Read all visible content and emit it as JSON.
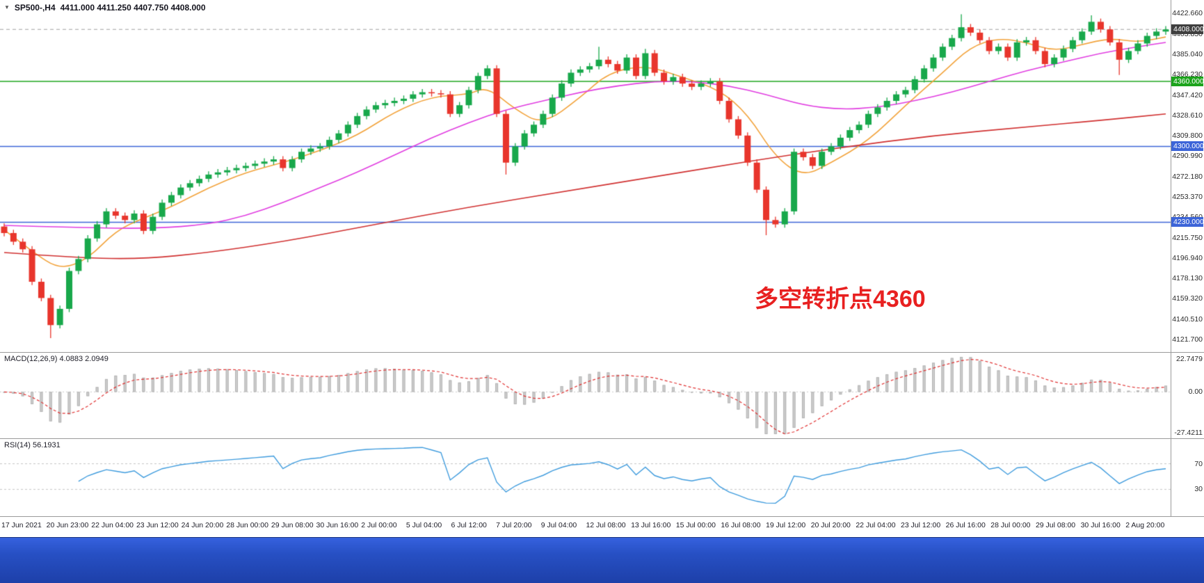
{
  "header": {
    "symbol_period": "SP500-,H4",
    "ohlc": "4411.000 4411.250 4407.750 4408.000"
  },
  "annotation": {
    "text": "多空转折点4360",
    "color": "#e82020"
  },
  "indicators": {
    "macd_label": "MACD(12,26,9) 4.0883 2.0949",
    "rsi_label": "RSI(14) 56.1931",
    "macd_axis": {
      "max": "22.7479",
      "zero": "0.00",
      "min": "-27.4211"
    },
    "rsi_axis": {
      "upper": "70",
      "lower": "30"
    }
  },
  "chart_data": [
    {
      "type": "candlestick",
      "title": "SP500-,H4",
      "x_labels": [
        "17 Jun 2021",
        "20 Jun 23:00",
        "22 Jun 04:00",
        "23 Jun 12:00",
        "24 Jun 20:00",
        "28 Jun 00:00",
        "29 Jun 08:00",
        "30 Jun 16:00",
        "2 Jul 00:00",
        "5 Jul 04:00",
        "6 Jul 12:00",
        "7 Jul 20:00",
        "9 Jul 04:00",
        "12 Jul 08:00",
        "13 Jul 16:00",
        "15 Jul 00:00",
        "16 Jul 08:00",
        "19 Jul 12:00",
        "20 Jul 20:00",
        "22 Jul 04:00",
        "23 Jul 12:00",
        "26 Jul 16:00",
        "28 Jul 00:00",
        "29 Jul 08:00",
        "30 Jul 16:00",
        "2 Aug 20:00"
      ],
      "first_open": 4226,
      "closes": [
        4220,
        4212,
        4205,
        4175,
        4160,
        4135,
        4150,
        4185,
        4196,
        4215,
        4228,
        4240,
        4236,
        4232,
        4238,
        4222,
        4235,
        4248,
        4255,
        4262,
        4266,
        4270,
        4274,
        4276,
        4278,
        4280,
        4282,
        4284,
        4286,
        4288,
        4280,
        4288,
        4295,
        4298,
        4300,
        4306,
        4312,
        4320,
        4328,
        4334,
        4338,
        4340,
        4342,
        4344,
        4348,
        4350,
        4349,
        4348,
        4330,
        4338,
        4352,
        4365,
        4372,
        4330,
        4285,
        4300,
        4312,
        4320,
        4330,
        4345,
        4358,
        4368,
        4371,
        4374,
        4380,
        4376,
        4370,
        4382,
        4365,
        4386,
        4368,
        4360,
        4364,
        4358,
        4355,
        4358,
        4360,
        4342,
        4325,
        4310,
        4285,
        4260,
        4232,
        4228,
        4240,
        4295,
        4290,
        4282,
        4295,
        4300,
        4308,
        4315,
        4320,
        4330,
        4336,
        4342,
        4348,
        4352,
        4362,
        4372,
        4382,
        4392,
        4400,
        4410,
        4405,
        4398,
        4388,
        4392,
        4382,
        4396,
        4398,
        4388,
        4376,
        4382,
        4390,
        4398,
        4406,
        4415,
        4408,
        4396,
        4380,
        4388,
        4395,
        4402,
        4406,
        4408
      ],
      "wick_extra": 3,
      "special_wicks": {
        "5": {
          "low": 4123
        },
        "54": {
          "low": 4274
        },
        "64": {
          "high": 4392
        },
        "69": {
          "high": 4390
        },
        "82": {
          "low": 4218
        },
        "103": {
          "high": 4422
        },
        "117": {
          "high": 4421
        },
        "120": {
          "low": 4366
        }
      },
      "ylim": [
        4114,
        4430
      ],
      "axis_labels": [
        "4422.660",
        "4403.850",
        "4385.040",
        "4366.230",
        "4347.420",
        "4328.610",
        "4309.800",
        "4290.990",
        "4272.180",
        "4253.370",
        "4234.560",
        "4215.750",
        "4196.940",
        "4178.130",
        "4159.320",
        "4140.510",
        "4121.700"
      ],
      "price_badges": [
        {
          "text": "4408.000",
          "price": 4408,
          "bg": "#3f3f3f"
        },
        {
          "text": "4360.000",
          "price": 4360,
          "bg": "#1ca41c"
        },
        {
          "text": "4300.000",
          "price": 4300,
          "bg": "#3c64d8"
        },
        {
          "text": "4230.000",
          "price": 4230,
          "bg": "#3c64d8"
        }
      ],
      "hlines": [
        {
          "price": 4360,
          "color": "#1ca41c"
        },
        {
          "price": 4300,
          "color": "#3c64d8"
        },
        {
          "price": 4230,
          "color": "#3c64d8"
        }
      ],
      "current_price_line": {
        "price": 4408,
        "color": "#a0a0a0"
      },
      "up_color": "#18a84b",
      "down_color": "#e8352c",
      "overlays": [
        {
          "name": "ma-fast",
          "color": "#f2a33c",
          "points": [
            [
              0,
              4223
            ],
            [
              3,
              4203
            ],
            [
              6,
              4186
            ],
            [
              9,
              4196
            ],
            [
              12,
              4222
            ],
            [
              15,
              4234
            ],
            [
              18,
              4244
            ],
            [
              22,
              4262
            ],
            [
              26,
              4276
            ],
            [
              30,
              4285
            ],
            [
              34,
              4296
            ],
            [
              38,
              4310
            ],
            [
              42,
              4332
            ],
            [
              46,
              4346
            ],
            [
              50,
              4348
            ],
            [
              52,
              4355
            ],
            [
              55,
              4334
            ],
            [
              58,
              4320
            ],
            [
              62,
              4345
            ],
            [
              65,
              4368
            ],
            [
              69,
              4375
            ],
            [
              73,
              4364
            ],
            [
              77,
              4352
            ],
            [
              80,
              4330
            ],
            [
              83,
              4290
            ],
            [
              86,
              4272
            ],
            [
              89,
              4285
            ],
            [
              93,
              4305
            ],
            [
              97,
              4338
            ],
            [
              101,
              4368
            ],
            [
              104,
              4392
            ],
            [
              107,
              4400
            ],
            [
              110,
              4396
            ],
            [
              113,
              4388
            ],
            [
              116,
              4394
            ],
            [
              119,
              4400
            ],
            [
              122,
              4396
            ],
            [
              125,
              4401
            ]
          ]
        },
        {
          "name": "ma-medium",
          "color": "#e03ce0",
          "points": [
            [
              0,
              4227
            ],
            [
              8,
              4225
            ],
            [
              16,
              4224
            ],
            [
              22,
              4228
            ],
            [
              26,
              4236
            ],
            [
              30,
              4248
            ],
            [
              34,
              4262
            ],
            [
              38,
              4276
            ],
            [
              42,
              4292
            ],
            [
              46,
              4308
            ],
            [
              50,
              4322
            ],
            [
              54,
              4334
            ],
            [
              58,
              4342
            ],
            [
              62,
              4350
            ],
            [
              66,
              4356
            ],
            [
              70,
              4360
            ],
            [
              74,
              4360
            ],
            [
              78,
              4356
            ],
            [
              82,
              4348
            ],
            [
              86,
              4338
            ],
            [
              90,
              4334
            ],
            [
              94,
              4336
            ],
            [
              98,
              4342
            ],
            [
              102,
              4350
            ],
            [
              106,
              4360
            ],
            [
              110,
              4370
            ],
            [
              114,
              4378
            ],
            [
              118,
              4386
            ],
            [
              122,
              4392
            ],
            [
              125,
              4396
            ]
          ]
        },
        {
          "name": "ma-slow",
          "color": "#d03030",
          "points": [
            [
              0,
              4202
            ],
            [
              8,
              4197
            ],
            [
              15,
              4196
            ],
            [
              22,
              4202
            ],
            [
              30,
              4212
            ],
            [
              40,
              4228
            ],
            [
              50,
              4244
            ],
            [
              60,
              4258
            ],
            [
              70,
              4272
            ],
            [
              80,
              4286
            ],
            [
              90,
              4299
            ],
            [
              100,
              4310
            ],
            [
              110,
              4318
            ],
            [
              118,
              4324
            ],
            [
              125,
              4330
            ]
          ]
        }
      ]
    },
    {
      "type": "bar",
      "name": "MACD",
      "params": [
        12,
        26,
        9
      ],
      "current": 4.0883,
      "signal_current": 2.0949,
      "ylim": [
        -27.4211,
        22.7479
      ],
      "histogram_color": "#cdcdcd",
      "histogram_border": "#b4b4b4",
      "signal_color": "#e03030"
    },
    {
      "type": "line",
      "name": "RSI",
      "period": 14,
      "current": 56.1931,
      "levels": [
        70,
        30
      ],
      "line_color": "#3e9bdd",
      "level_color": "#c4c4c4"
    }
  ]
}
